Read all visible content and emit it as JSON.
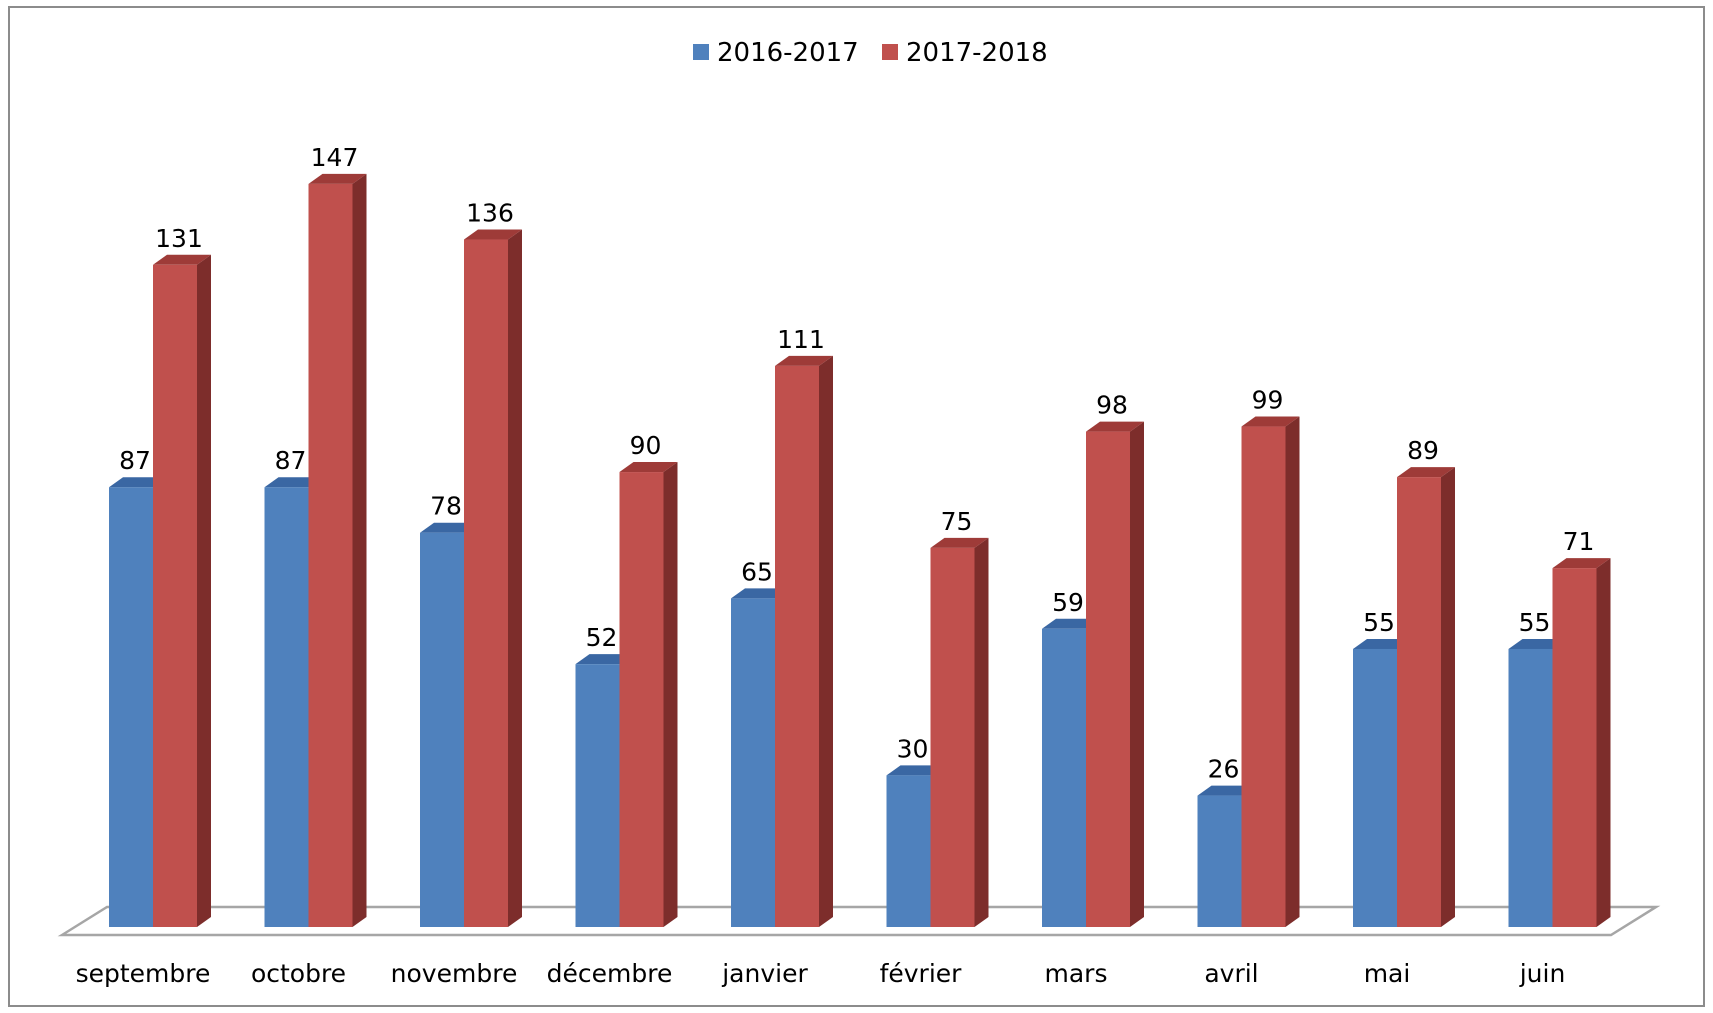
{
  "chart_data": {
    "type": "bar",
    "three_d": true,
    "categories": [
      "septembre",
      "octobre",
      "novembre",
      "décembre",
      "janvier",
      "février",
      "mars",
      "avril",
      "mai",
      "juin"
    ],
    "series": [
      {
        "name": "2016-2017",
        "values": [
          87,
          87,
          78,
          52,
          65,
          30,
          59,
          26,
          55,
          55
        ],
        "color": "#4f81bd",
        "side_color": "#2e5a91",
        "top_color": "#3a67a3"
      },
      {
        "name": "2017-2018",
        "values": [
          131,
          147,
          136,
          90,
          111,
          75,
          98,
          99,
          89,
          71
        ],
        "color": "#c0504d",
        "side_color": "#7d2d2b",
        "top_color": "#9e3b38"
      }
    ],
    "ylim": [
      0,
      160
    ],
    "grid": false,
    "legend_position": "top-center",
    "data_labels": true
  }
}
